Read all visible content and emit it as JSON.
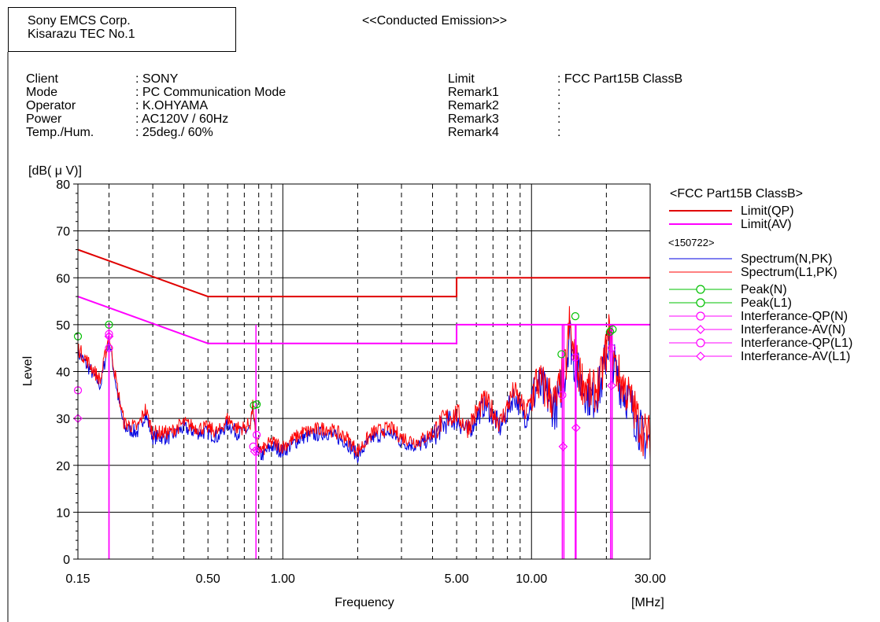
{
  "header": {
    "company_line1": "Sony EMCS Corp.",
    "company_line2": "Kisarazu TEC No.1",
    "title": "<<Conducted Emission>>"
  },
  "info": {
    "left": [
      {
        "label": "Client",
        "value": ": SONY"
      },
      {
        "label": "Mode",
        "value": ": PC Communication Mode"
      },
      {
        "label": "Operator",
        "value": ": K.OHYAMA"
      },
      {
        "label": "Power",
        "value": ": AC120V / 60Hz"
      },
      {
        "label": "Temp./Hum.",
        "value": ": 25deg./ 60%"
      }
    ],
    "right": [
      {
        "label": "Limit",
        "value": ": FCC Part15B ClassB"
      },
      {
        "label": "Remark1",
        "value": ":"
      },
      {
        "label": "Remark2",
        "value": ":"
      },
      {
        "label": "Remark3",
        "value": ":"
      },
      {
        "label": "Remark4",
        "value": ":"
      }
    ]
  },
  "colors": {
    "limit_qp": "#e00000",
    "limit_av": "#ff00ff",
    "spectrum_n": "#0000e0",
    "spectrum_l1": "#ff0000",
    "peak": "#00c000",
    "interference": "#ff00ff"
  },
  "chart_data": {
    "type": "line",
    "x_scale": "log",
    "xlim": [
      0.15,
      30
    ],
    "ylim": [
      0,
      80
    ],
    "xlabel": "Frequency",
    "x_unit": "[MHz]",
    "ylabel": "Level",
    "y_unit": "[dB( μ V)]",
    "x_ticks": [
      "0.15",
      "0.50",
      "1.00",
      "5.00",
      "10.00",
      "30.00"
    ],
    "y_ticks": [
      "0",
      "10",
      "20",
      "30",
      "40",
      "50",
      "60",
      "70",
      "80"
    ],
    "grid": true,
    "legend_position": "right",
    "legend": {
      "group1_title": "<FCC Part15B ClassB>",
      "group2_title": "<150722>",
      "entries": [
        "Limit(QP)",
        "Limit(AV)",
        "Spectrum(N,PK)",
        "Spectrum(L1,PK)",
        "Peak(N)",
        "Peak(L1)",
        "Interferance-QP(N)",
        "Interferance-AV(N)",
        "Interferance-QP(L1)",
        "Interferance-AV(L1)"
      ]
    },
    "limit_qp": [
      [
        0.15,
        66
      ],
      [
        0.5,
        56
      ],
      [
        5,
        56
      ],
      [
        5,
        60
      ],
      [
        30,
        60
      ]
    ],
    "limit_av": [
      [
        0.15,
        56
      ],
      [
        0.5,
        46
      ],
      [
        5,
        46
      ],
      [
        5,
        50
      ],
      [
        30,
        50
      ]
    ],
    "spectrum_points": [
      [
        0.15,
        45
      ],
      [
        0.17,
        41
      ],
      [
        0.185,
        38
      ],
      [
        0.2,
        48
      ],
      [
        0.215,
        37
      ],
      [
        0.23,
        29
      ],
      [
        0.26,
        28
      ],
      [
        0.28,
        32
      ],
      [
        0.3,
        27
      ],
      [
        0.35,
        27
      ],
      [
        0.4,
        29
      ],
      [
        0.45,
        28
      ],
      [
        0.5,
        28
      ],
      [
        0.55,
        27
      ],
      [
        0.6,
        30
      ],
      [
        0.65,
        28
      ],
      [
        0.7,
        28
      ],
      [
        0.74,
        29
      ],
      [
        0.76,
        33
      ],
      [
        0.78,
        25
      ],
      [
        0.82,
        23
      ],
      [
        0.9,
        25
      ],
      [
        1.0,
        24
      ],
      [
        1.2,
        27
      ],
      [
        1.5,
        28
      ],
      [
        1.8,
        26
      ],
      [
        2.0,
        23
      ],
      [
        2.3,
        27
      ],
      [
        2.7,
        28
      ],
      [
        3.0,
        26
      ],
      [
        3.5,
        25
      ],
      [
        4.0,
        27
      ],
      [
        4.5,
        30
      ],
      [
        5.0,
        31
      ],
      [
        5.5,
        28
      ],
      [
        6.5,
        34
      ],
      [
        7.5,
        29
      ],
      [
        8.5,
        36
      ],
      [
        9.5,
        31
      ],
      [
        10.5,
        38
      ],
      [
        11.5,
        36
      ],
      [
        12.5,
        33
      ],
      [
        13.2,
        38
      ],
      [
        13.8,
        42
      ],
      [
        14.2,
        50
      ],
      [
        14.8,
        43
      ],
      [
        16,
        38
      ],
      [
        17.5,
        35
      ],
      [
        19,
        38
      ],
      [
        20.5,
        48
      ],
      [
        22,
        40
      ],
      [
        25,
        34
      ],
      [
        28,
        27
      ],
      [
        30,
        26
      ]
    ],
    "peaks": [
      [
        0.15,
        47.5
      ],
      [
        0.2,
        50
      ],
      [
        0.765,
        32.8
      ],
      [
        0.785,
        33
      ],
      [
        13.2,
        43.7
      ],
      [
        15.0,
        51.8
      ],
      [
        20.7,
        48.5
      ],
      [
        21.2,
        49
      ]
    ],
    "interference_qp": [
      [
        0.15,
        36
      ],
      [
        0.2,
        48
      ],
      [
        0.2,
        45
      ],
      [
        0.76,
        24
      ],
      [
        0.785,
        26.5
      ],
      [
        13.3,
        35
      ],
      [
        15.0,
        43
      ],
      [
        21.0,
        45
      ]
    ],
    "interference_av": [
      [
        0.15,
        30
      ],
      [
        0.2,
        47.5
      ],
      [
        0.77,
        23
      ],
      [
        0.79,
        23
      ],
      [
        13.4,
        24
      ],
      [
        15.1,
        28
      ],
      [
        21.0,
        37
      ]
    ],
    "drop_lines_x": [
      0.2,
      0.2,
      0.78,
      13.3,
      13.5,
      15.0,
      15.1,
      20.8,
      21.1
    ]
  }
}
